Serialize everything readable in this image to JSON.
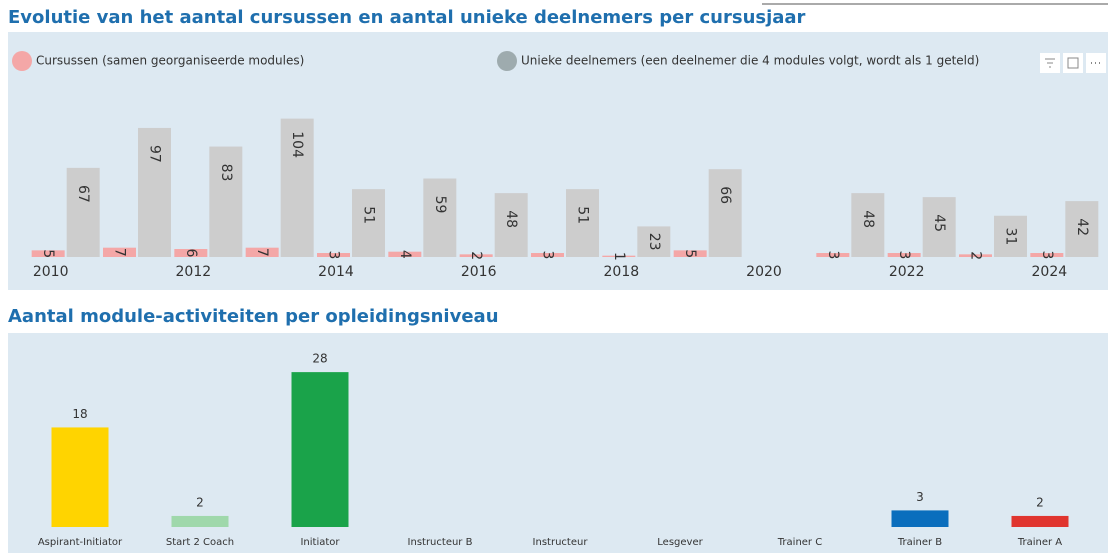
{
  "chart_data": [
    {
      "type": "grouped-bar",
      "title": "Evolutie van het aantal cursussen en aantal unieke deelnemers per cursusjaar",
      "categories": [
        "2010",
        null,
        "2012",
        null,
        "2014",
        null,
        "2016",
        null,
        "2018",
        null,
        "2020",
        null,
        "2022",
        null,
        "2024"
      ],
      "series": [
        {
          "name": "Cursussen (samen georganiseerde modules)",
          "color": "#f4a7a7",
          "values": [
            5,
            7,
            6,
            7,
            3,
            4,
            2,
            3,
            1,
            5,
            null,
            3,
            3,
            2,
            3
          ]
        },
        {
          "name": "Unieke deelnemers (een deelnemer die 4 modules volgt, wordt als 1 geteld)",
          "color": "#cdcdcd",
          "values": [
            67,
            97,
            83,
            104,
            51,
            59,
            48,
            51,
            23,
            66,
            null,
            48,
            45,
            31,
            42
          ]
        }
      ],
      "ylim": [
        0,
        118
      ],
      "legend": "top-left"
    },
    {
      "type": "bar",
      "title": "Aantal module-activiteiten per opleidingsniveau",
      "categories": [
        "Aspirant-Initiator",
        "Start 2 Coach",
        "Initiator",
        "Instructeur B",
        "Instructeur",
        "Lesgever",
        "Trainer C",
        "Trainer B",
        "Trainer A"
      ],
      "values": [
        18,
        2,
        28,
        0,
        0,
        0,
        0,
        3,
        2
      ],
      "colors": [
        "#ffd400",
        "#9fd8ab",
        "#1aa34a",
        "#cccccc",
        "#cccccc",
        "#cccccc",
        "#cccccc",
        "#0a6ebd",
        "#e0352f"
      ],
      "ylim": [
        0,
        32
      ]
    }
  ]
}
